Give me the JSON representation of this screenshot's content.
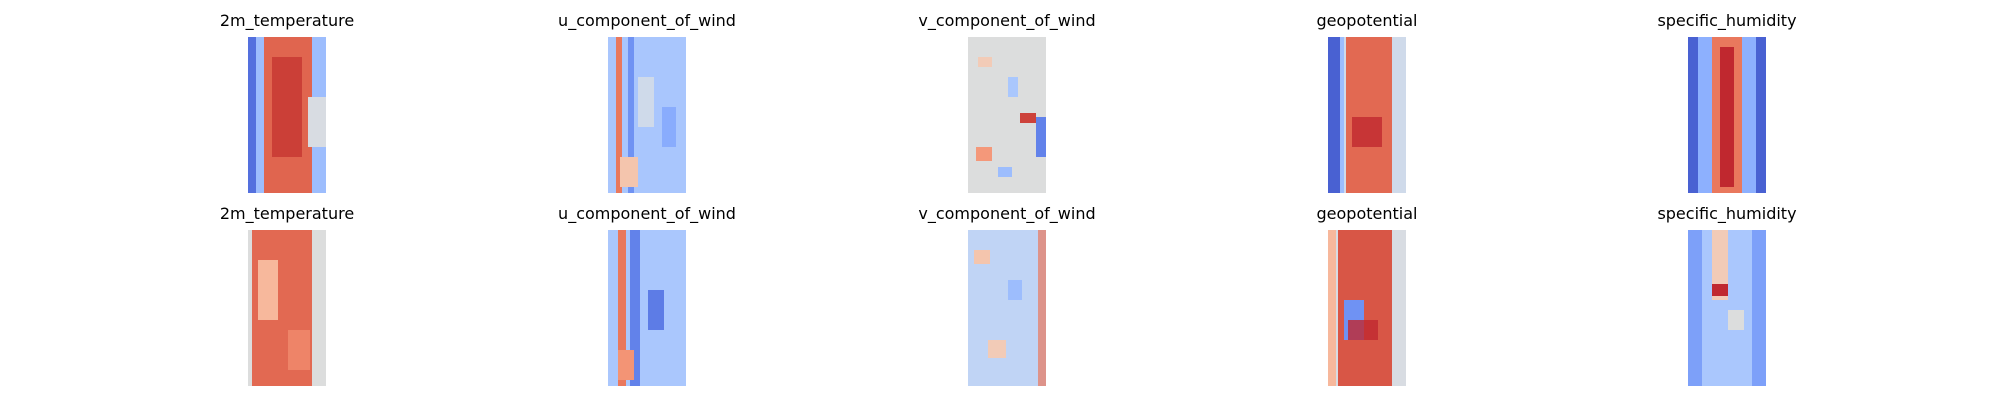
{
  "chart_data": {
    "type": "heatmap",
    "colormap": "coolwarm",
    "colors": {
      "low": "#3b4cc0",
      "mid": "#dddddd",
      "high": "#b40426"
    },
    "axes": "off",
    "rows": [
      {
        "panels": [
          {
            "title": "2m_temperature"
          },
          {
            "title": "u_component_of_wind"
          },
          {
            "title": "v_component_of_wind"
          },
          {
            "title": "geopotential"
          },
          {
            "title": "specific_humidity"
          }
        ]
      },
      {
        "panels": [
          {
            "title": "2m_temperature"
          },
          {
            "title": "u_component_of_wind"
          },
          {
            "title": "v_component_of_wind"
          },
          {
            "title": "geopotential"
          },
          {
            "title": "specific_humidity"
          }
        ]
      }
    ]
  }
}
